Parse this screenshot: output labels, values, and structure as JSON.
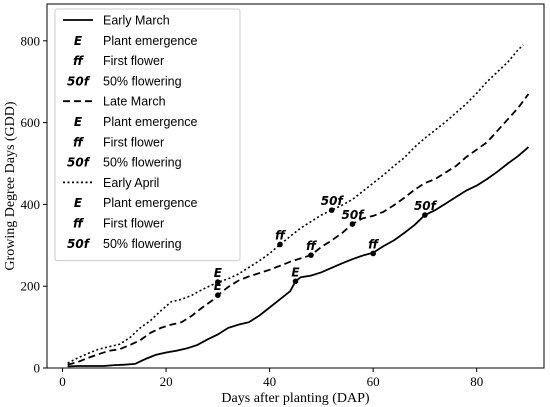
{
  "chart_data": {
    "type": "line",
    "xlabel": "Days after planting (DAP)",
    "ylabel": "Growing Degree Days (GDD)",
    "xlim": [
      -3,
      93
    ],
    "ylim": [
      0,
      890
    ],
    "xticks": [
      0,
      20,
      40,
      60,
      80
    ],
    "yticks": [
      0,
      200,
      400,
      600,
      800
    ],
    "grid": false,
    "legend_position": "upper-left",
    "series": [
      {
        "name": "Early March",
        "style": "solid",
        "points": [
          [
            1,
            4
          ],
          [
            3,
            5
          ],
          [
            5,
            5
          ],
          [
            8,
            5
          ],
          [
            10,
            7
          ],
          [
            12,
            8
          ],
          [
            14,
            10
          ],
          [
            16,
            22
          ],
          [
            18,
            32
          ],
          [
            20,
            38
          ],
          [
            22,
            42
          ],
          [
            24,
            48
          ],
          [
            26,
            56
          ],
          [
            28,
            70
          ],
          [
            30,
            82
          ],
          [
            32,
            98
          ],
          [
            34,
            106
          ],
          [
            36,
            112
          ],
          [
            38,
            128
          ],
          [
            40,
            148
          ],
          [
            42,
            168
          ],
          [
            44,
            188
          ],
          [
            45,
            212
          ],
          [
            46,
            222
          ],
          [
            48,
            226
          ],
          [
            50,
            234
          ],
          [
            52,
            245
          ],
          [
            54,
            256
          ],
          [
            56,
            266
          ],
          [
            58,
            275
          ],
          [
            60,
            282
          ],
          [
            62,
            298
          ],
          [
            64,
            312
          ],
          [
            66,
            330
          ],
          [
            68,
            350
          ],
          [
            70,
            374
          ],
          [
            72,
            386
          ],
          [
            74,
            402
          ],
          [
            76,
            418
          ],
          [
            78,
            434
          ],
          [
            80,
            446
          ],
          [
            82,
            462
          ],
          [
            84,
            480
          ],
          [
            86,
            500
          ],
          [
            88,
            518
          ],
          [
            90,
            540
          ]
        ],
        "milestones": [
          {
            "label": "E",
            "x": 45,
            "y": 212
          },
          {
            "label": "ff",
            "x": 60,
            "y": 280
          },
          {
            "label": "50f",
            "x": 70,
            "y": 374
          }
        ]
      },
      {
        "name": "Late March",
        "style": "dashed",
        "points": [
          [
            1,
            8
          ],
          [
            3,
            15
          ],
          [
            5,
            25
          ],
          [
            7,
            34
          ],
          [
            9,
            42
          ],
          [
            11,
            46
          ],
          [
            13,
            56
          ],
          [
            15,
            68
          ],
          [
            17,
            86
          ],
          [
            19,
            98
          ],
          [
            21,
            106
          ],
          [
            23,
            112
          ],
          [
            25,
            128
          ],
          [
            27,
            148
          ],
          [
            29,
            166
          ],
          [
            30,
            178
          ],
          [
            32,
            198
          ],
          [
            34,
            214
          ],
          [
            36,
            224
          ],
          [
            38,
            232
          ],
          [
            40,
            240
          ],
          [
            42,
            250
          ],
          [
            44,
            260
          ],
          [
            46,
            268
          ],
          [
            48,
            276
          ],
          [
            50,
            296
          ],
          [
            52,
            312
          ],
          [
            54,
            330
          ],
          [
            56,
            352
          ],
          [
            58,
            366
          ],
          [
            60,
            372
          ],
          [
            62,
            382
          ],
          [
            64,
            398
          ],
          [
            66,
            416
          ],
          [
            68,
            436
          ],
          [
            70,
            452
          ],
          [
            72,
            462
          ],
          [
            74,
            478
          ],
          [
            76,
            494
          ],
          [
            78,
            516
          ],
          [
            80,
            534
          ],
          [
            82,
            552
          ],
          [
            84,
            580
          ],
          [
            86,
            608
          ],
          [
            88,
            636
          ],
          [
            90,
            670
          ]
        ],
        "milestones": [
          {
            "label": "E",
            "x": 30,
            "y": 178
          },
          {
            "label": "ff",
            "x": 48,
            "y": 276
          },
          {
            "label": "50f",
            "x": 56,
            "y": 352
          }
        ]
      },
      {
        "name": "Early April",
        "style": "dotted",
        "points": [
          [
            1,
            12
          ],
          [
            3,
            25
          ],
          [
            5,
            36
          ],
          [
            7,
            46
          ],
          [
            9,
            52
          ],
          [
            11,
            58
          ],
          [
            13,
            74
          ],
          [
            15,
            98
          ],
          [
            17,
            116
          ],
          [
            19,
            140
          ],
          [
            21,
            162
          ],
          [
            23,
            168
          ],
          [
            25,
            178
          ],
          [
            27,
            192
          ],
          [
            29,
            204
          ],
          [
            30,
            210
          ],
          [
            32,
            218
          ],
          [
            34,
            230
          ],
          [
            36,
            246
          ],
          [
            38,
            262
          ],
          [
            40,
            280
          ],
          [
            42,
            302
          ],
          [
            44,
            322
          ],
          [
            46,
            342
          ],
          [
            48,
            358
          ],
          [
            50,
            374
          ],
          [
            52,
            386
          ],
          [
            54,
            398
          ],
          [
            56,
            412
          ],
          [
            58,
            432
          ],
          [
            60,
            452
          ],
          [
            62,
            472
          ],
          [
            64,
            494
          ],
          [
            66,
            514
          ],
          [
            68,
            540
          ],
          [
            70,
            562
          ],
          [
            72,
            582
          ],
          [
            74,
            602
          ],
          [
            76,
            624
          ],
          [
            78,
            646
          ],
          [
            80,
            672
          ],
          [
            82,
            700
          ],
          [
            84,
            724
          ],
          [
            86,
            748
          ],
          [
            88,
            778
          ],
          [
            89,
            790
          ]
        ],
        "milestones": [
          {
            "label": "E",
            "x": 30,
            "y": 210
          },
          {
            "label": "ff",
            "x": 42,
            "y": 302
          },
          {
            "label": "50f",
            "x": 52,
            "y": 386
          }
        ]
      }
    ],
    "legend": [
      {
        "kind": "line",
        "style": "solid",
        "label": "Early March"
      },
      {
        "kind": "marker",
        "symbol": "E",
        "label": "Plant emergence"
      },
      {
        "kind": "marker",
        "symbol": "ff",
        "label": "First flower"
      },
      {
        "kind": "marker",
        "symbol": "50f",
        "label": "50% flowering"
      },
      {
        "kind": "line",
        "style": "dashed",
        "label": "Late March"
      },
      {
        "kind": "marker",
        "symbol": "E",
        "label": "Plant emergence"
      },
      {
        "kind": "marker",
        "symbol": "ff",
        "label": "First flower"
      },
      {
        "kind": "marker",
        "symbol": "50f",
        "label": "50% flowering"
      },
      {
        "kind": "line",
        "style": "dotted",
        "label": "Early April"
      },
      {
        "kind": "marker",
        "symbol": "E",
        "label": "Plant emergence"
      },
      {
        "kind": "marker",
        "symbol": "ff",
        "label": "First flower"
      },
      {
        "kind": "marker",
        "symbol": "50f",
        "label": "50% flowering"
      }
    ]
  }
}
